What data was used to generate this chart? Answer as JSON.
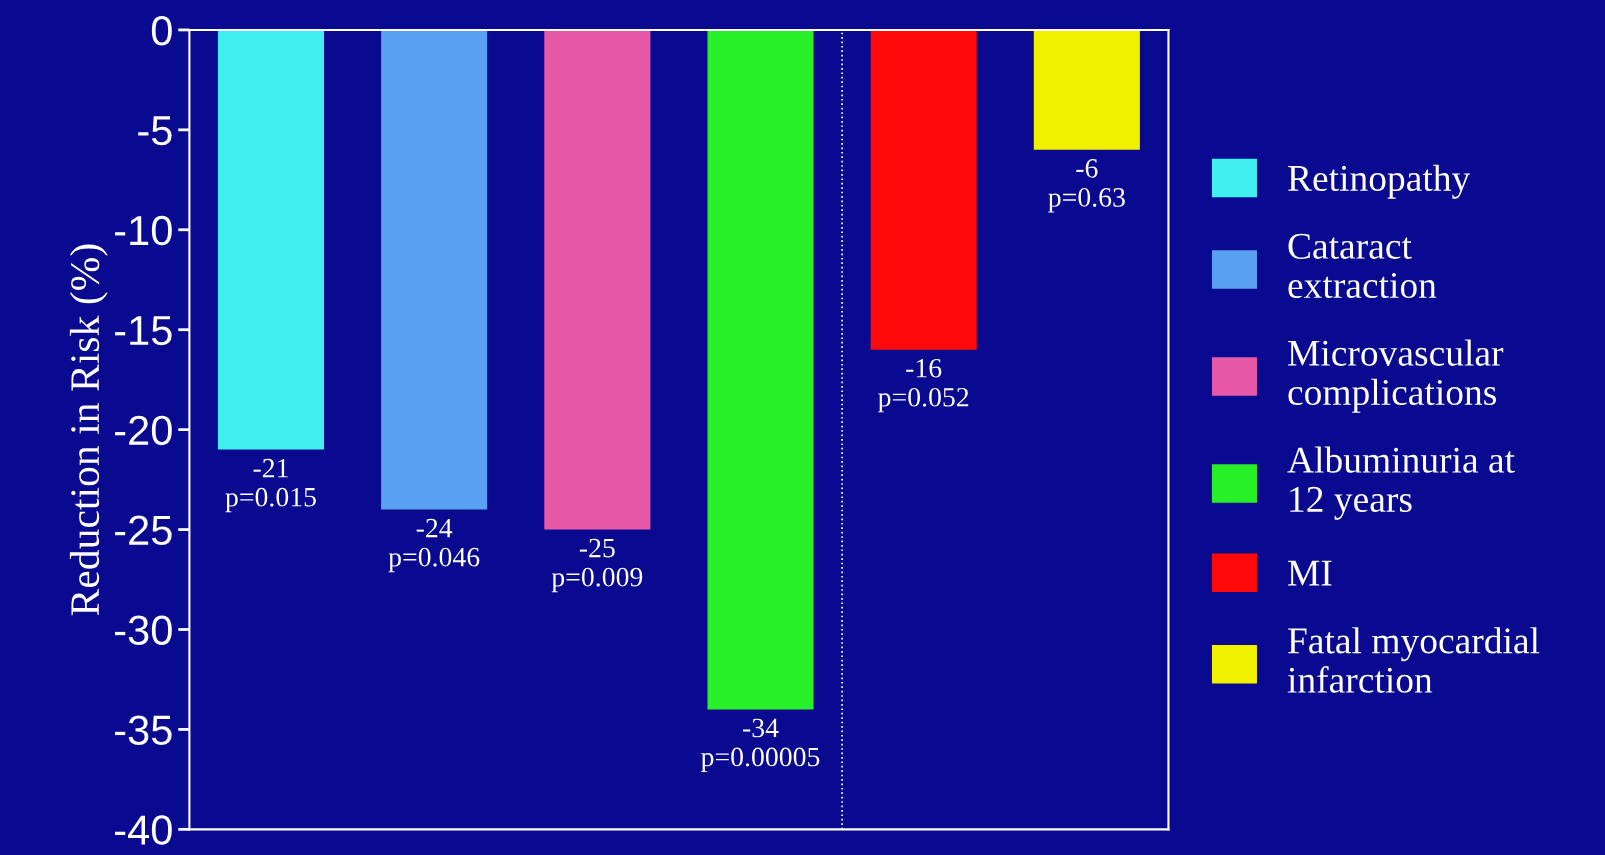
{
  "chart_data": {
    "type": "bar",
    "ylabel": "Reduction in Risk (%)",
    "categories": [
      null,
      null,
      null,
      null,
      null,
      null
    ],
    "series": [
      {
        "name": "Retinopathy",
        "color": "#40f0f0",
        "values": [
          -21,
          null,
          null,
          null,
          null,
          null
        ],
        "value_labels": [
          "-21\np=0.015",
          null,
          null,
          null,
          null,
          null
        ]
      },
      {
        "name": "Cataract\nextraction",
        "color": "#5aa0f0",
        "values": [
          null,
          -24,
          null,
          null,
          null,
          null
        ],
        "value_labels": [
          null,
          "-24\np=0.046",
          null,
          null,
          null,
          null
        ]
      },
      {
        "name": "Microvascular\ncomplications",
        "color": "#e858a8",
        "values": [
          null,
          null,
          -25,
          null,
          null,
          null
        ],
        "value_labels": [
          null,
          null,
          "-25\np=0.009",
          null,
          null,
          null
        ]
      },
      {
        "name": "Albuminuria at\n12 years",
        "color": "#28f028",
        "values": [
          null,
          null,
          null,
          -34,
          null,
          null
        ],
        "value_labels": [
          null,
          null,
          null,
          "-34\np=0.00005",
          null,
          null
        ]
      },
      {
        "name": "MI",
        "color": "#ff0a0a",
        "values": [
          null,
          null,
          null,
          null,
          -16,
          null
        ],
        "value_labels": [
          null,
          null,
          null,
          null,
          "-16\np=0.052",
          null
        ]
      },
      {
        "name": "Fatal myocardial\ninfarction",
        "color": "#f0f000",
        "values": [
          null,
          null,
          null,
          null,
          null,
          -6
        ],
        "value_labels": [
          null,
          null,
          null,
          null,
          null,
          "-6\np=0.63"
        ]
      }
    ],
    "ylim": [
      -40,
      0
    ],
    "yticks": [
      0,
      -5,
      -10,
      -15,
      -20,
      -25,
      -30,
      -35,
      -40
    ],
    "tick_labels": "y",
    "legend": "right",
    "grid": false
  }
}
